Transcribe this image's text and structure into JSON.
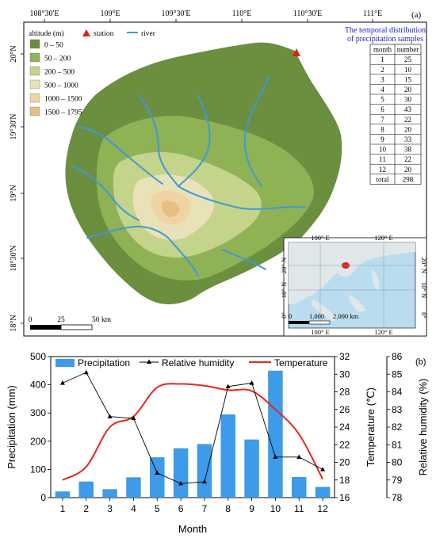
{
  "map": {
    "panel_label": "(a)",
    "top_ticks": [
      "108°30'E",
      "109°E",
      "109°30'E",
      "110°E",
      "110°30'E",
      "111°E"
    ],
    "left_ticks": [
      "20°N",
      "19°30'N",
      "19°N",
      "18°30'N",
      "18°N"
    ],
    "legend": {
      "title": "altitude (m)",
      "station_label": "station",
      "river_label": "river",
      "items": [
        {
          "label": "0 – 50",
          "color": "#6b8e3f"
        },
        {
          "label": "50 – 200",
          "color": "#8fb255"
        },
        {
          "label": "200 – 500",
          "color": "#c4d48a"
        },
        {
          "label": "500 – 1000",
          "color": "#e9e2b8"
        },
        {
          "label": "1000 – 1500",
          "color": "#efd3a4"
        },
        {
          "label": "1500 – 1795",
          "color": "#e8bf83"
        }
      ]
    },
    "table": {
      "title_line1": "The temporal distribution",
      "title_line2": "of precipitation samples",
      "headers": [
        "month",
        "number"
      ],
      "rows": [
        [
          "1",
          "25"
        ],
        [
          "2",
          "10"
        ],
        [
          "3",
          "15"
        ],
        [
          "4",
          "20"
        ],
        [
          "5",
          "30"
        ],
        [
          "6",
          "43"
        ],
        [
          "7",
          "22"
        ],
        [
          "8",
          "20"
        ],
        [
          "9",
          "33"
        ],
        [
          "10",
          "38"
        ],
        [
          "11",
          "22"
        ],
        [
          "12",
          "20"
        ],
        [
          "total",
          "298"
        ]
      ]
    },
    "scale": {
      "labels": [
        "0",
        "25",
        "50 km"
      ]
    },
    "inset": {
      "top_ticks": [
        "100° E",
        "120° E"
      ],
      "bottom_ticks": [
        "100° E",
        "120° E"
      ],
      "left_ticks": [
        "20° N",
        "10° N",
        "0°"
      ],
      "right_ticks": [
        "20° N",
        "10° N",
        "0°"
      ],
      "scale_labels": [
        "0",
        "1,000",
        "2,000 km"
      ]
    }
  },
  "chart_data": {
    "type": "bar",
    "panel_label": "(b)",
    "xlabel": "Month",
    "categories": [
      "1",
      "2",
      "3",
      "4",
      "5",
      "6",
      "7",
      "8",
      "9",
      "10",
      "11",
      "12"
    ],
    "series": [
      {
        "name": "Precipitation",
        "kind": "bar",
        "axis": "left",
        "color": "#3d9be9",
        "values": [
          22,
          57,
          30,
          72,
          143,
          175,
          190,
          295,
          206,
          450,
          73,
          38
        ]
      },
      {
        "name": "Relative humidity",
        "kind": "line-marker",
        "axis": "right-outer",
        "color": "#000000",
        "values": [
          84.5,
          85.1,
          82.6,
          82.5,
          79.4,
          78.8,
          78.9,
          84.3,
          84.5,
          80.3,
          80.3,
          79.6
        ]
      },
      {
        "name": "Temperature",
        "kind": "smooth-line",
        "axis": "right-inner",
        "color": "#e8251f",
        "values": [
          18.0,
          19.5,
          24.0,
          25.2,
          28.5,
          28.9,
          28.7,
          28.2,
          28.1,
          26.0,
          23.2,
          18.1
        ]
      }
    ],
    "left_axis": {
      "label": "Precipitation (mm)",
      "ylim": [
        0,
        500
      ],
      "ticks": [
        "0",
        "100",
        "200",
        "300",
        "400",
        "500"
      ]
    },
    "right_inner_axis": {
      "label": "Temperature (℃)",
      "ylim": [
        16,
        32
      ],
      "ticks": [
        "16",
        "18",
        "20",
        "22",
        "24",
        "26",
        "28",
        "30",
        "32"
      ]
    },
    "right_outer_axis": {
      "label": "Relative humidity (%)",
      "ylim": [
        78,
        86
      ],
      "ticks": [
        "78",
        "79",
        "80",
        "81",
        "82",
        "83",
        "84",
        "85",
        "86"
      ]
    },
    "legend_placement": "top"
  }
}
